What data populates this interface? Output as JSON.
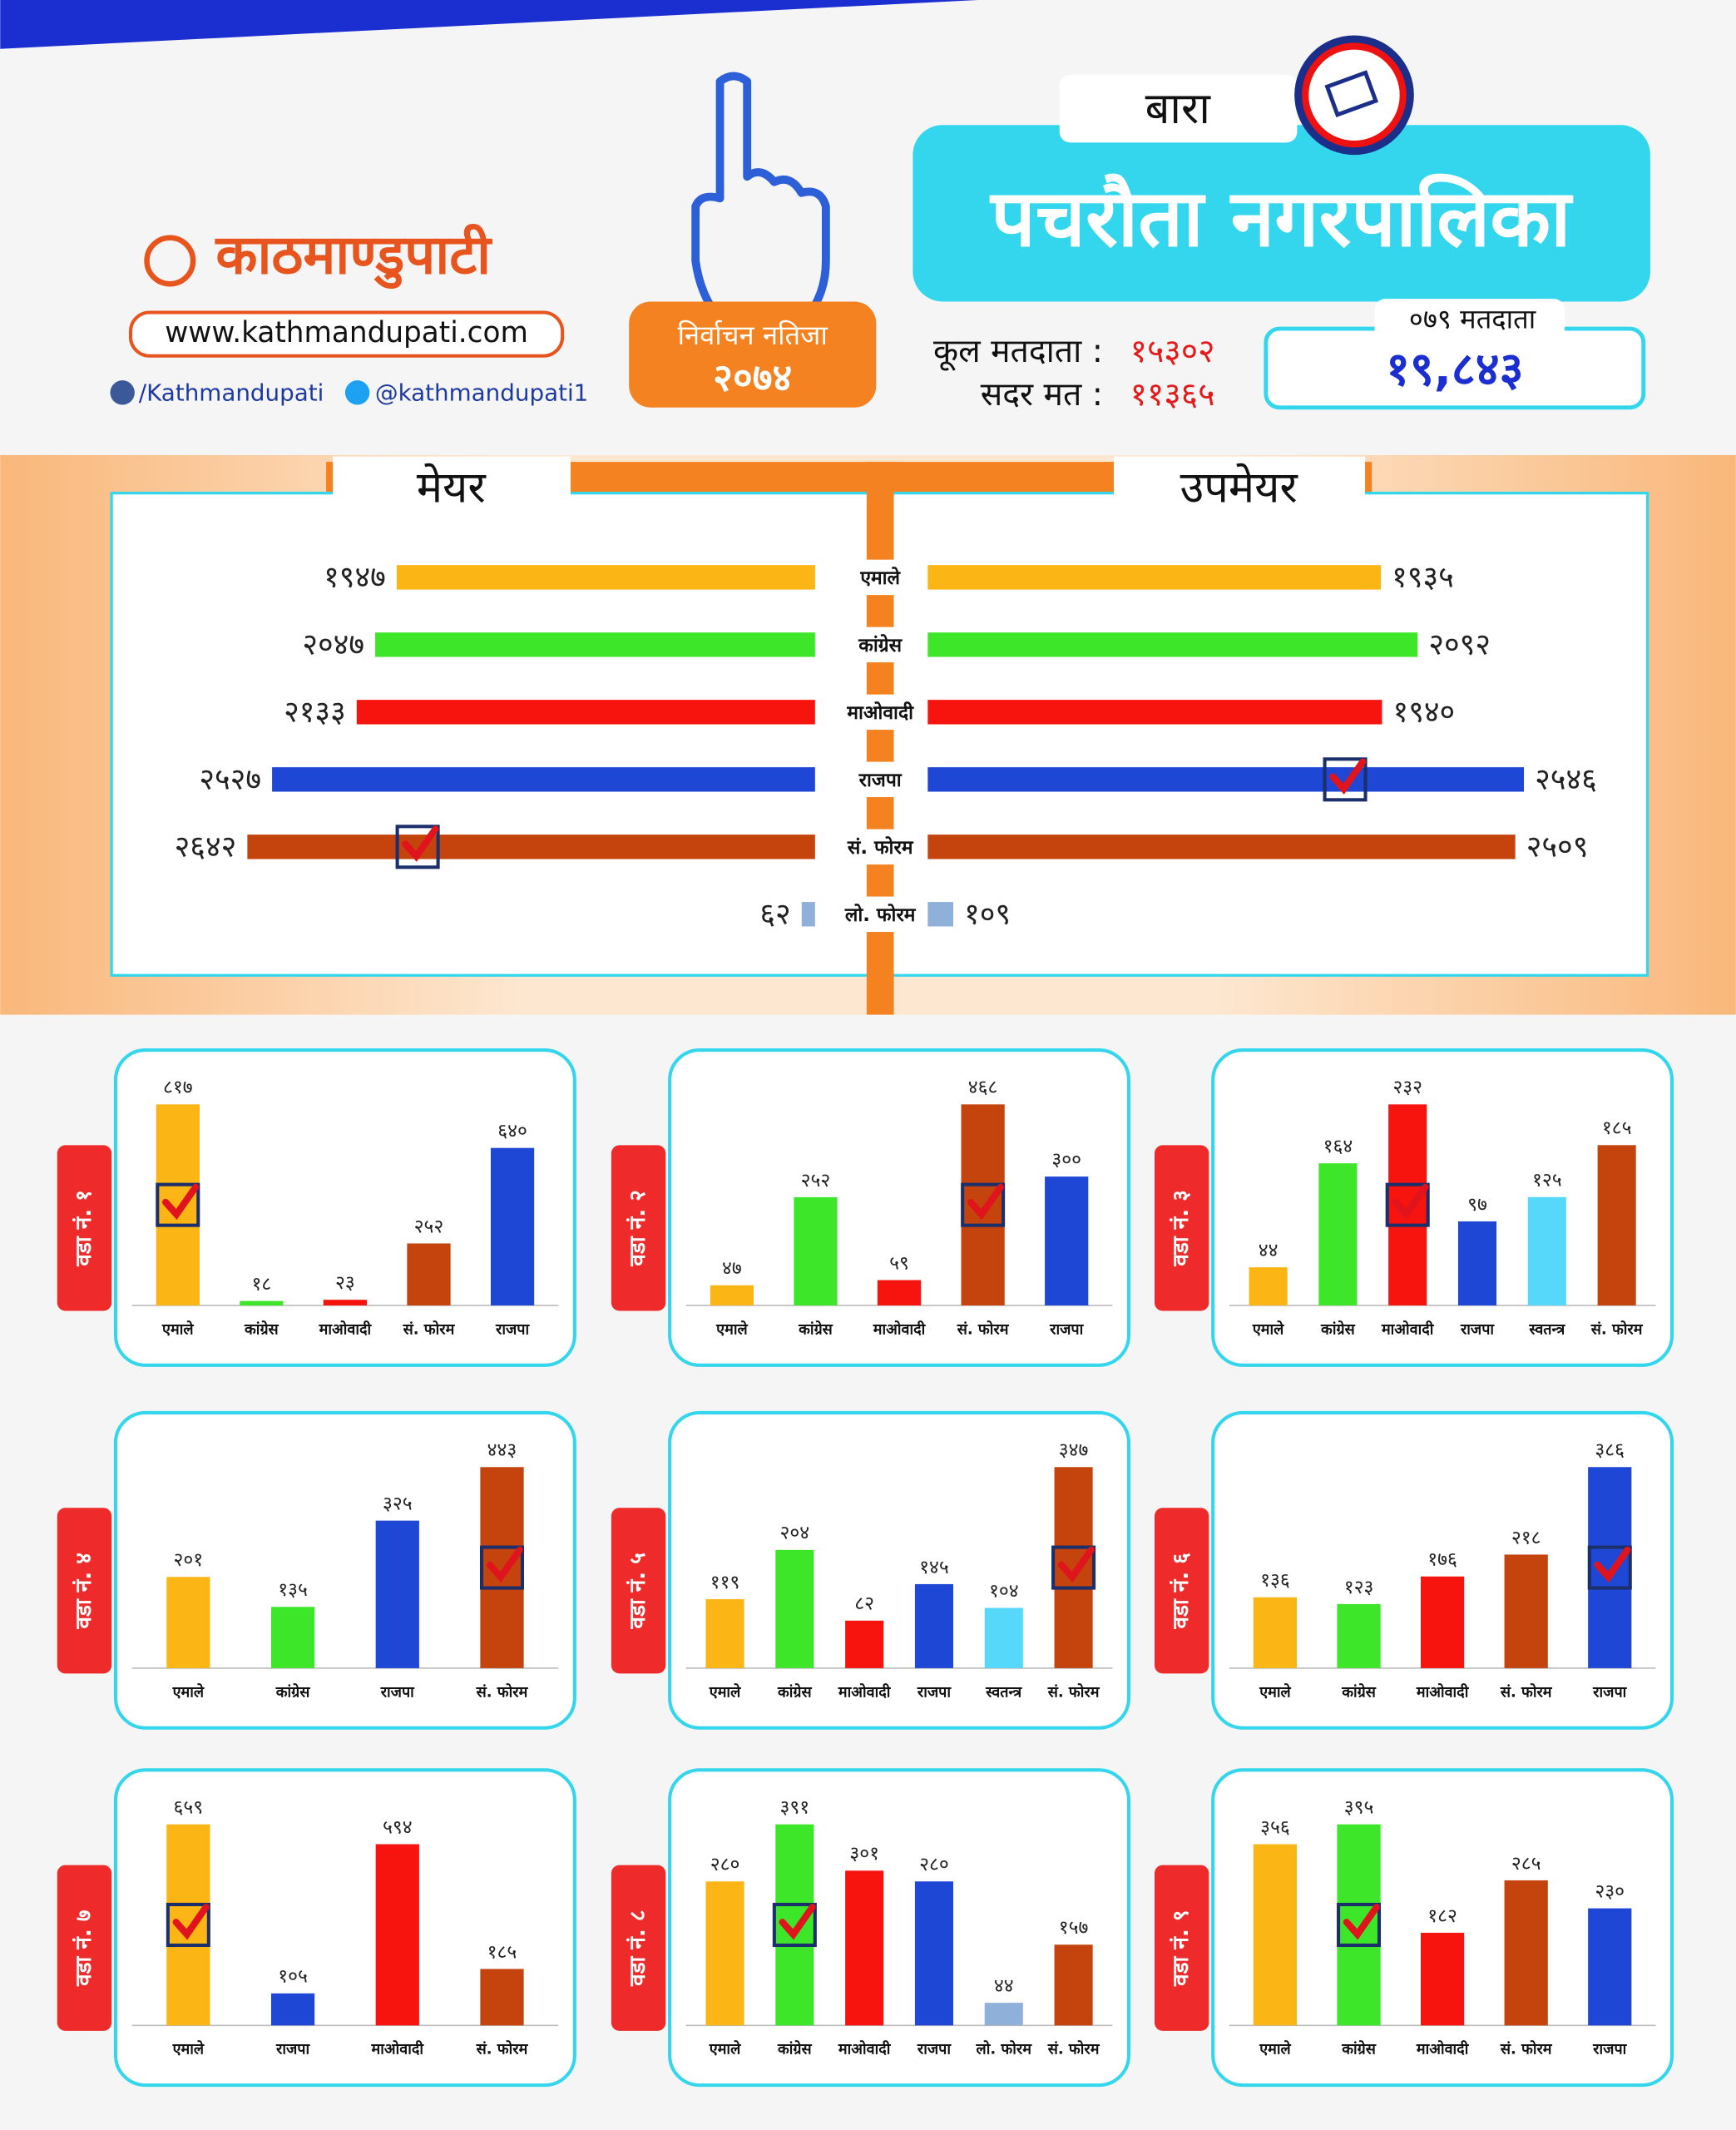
{
  "header": {
    "region": "बारा",
    "title": "पचरौता नगरपालिका",
    "brand": "काठमाण्डुपाटी",
    "website": "www.kathmandupati.com",
    "facebook": "/Kathmandupati",
    "twitter": "@kathmandupati1",
    "result_label": "निर्वाचन नतिजा",
    "result_year": "२०७४",
    "total_voters_label": "कूल मतदाता :",
    "total_voters": "१५३०२",
    "valid_votes_label": "सदर मत :",
    "valid_votes": "११३६५",
    "voters_2079_label": "०७९ मतदाता",
    "voters_2079": "१९,८४३"
  },
  "chart_data": [
    {
      "type": "diverging-bar",
      "categories": [
        "एमाले",
        "कांग्रेस",
        "माओवादी",
        "राजपा",
        "सं. फोरम",
        "लो. फोरम"
      ],
      "colors": [
        "#fbb514",
        "#3ee62a",
        "#f7130e",
        "#1e47d6",
        "#c5440e",
        "#8fb0d8"
      ],
      "series": [
        {
          "name": "मेयर",
          "values": [
            1947,
            2047,
            2133,
            2527,
            2642,
            62
          ],
          "value_labels": [
            "१९४७",
            "२०४७",
            "२१३३",
            "२५२७",
            "२६४२",
            "६२"
          ],
          "winner": 4
        },
        {
          "name": "उपमेयर",
          "values": [
            1935,
            2092,
            1940,
            2546,
            2509,
            109
          ],
          "value_labels": [
            "१९३५",
            "२०९२",
            "१९४०",
            "२५४६",
            "२५०९",
            "१०९"
          ],
          "winner": 3
        }
      ]
    },
    {
      "type": "bar",
      "title": "वडा नं. १",
      "categories": [
        "एमाले",
        "कांग्रेस",
        "माओवादी",
        "सं. फोरम",
        "राजपा"
      ],
      "colors": [
        "#fbb514",
        "#3ee62a",
        "#f7130e",
        "#c5440e",
        "#1e47d6"
      ],
      "values": [
        817,
        18,
        23,
        252,
        640
      ],
      "value_labels": [
        "८१७",
        "१८",
        "२३",
        "२५२",
        "६४०"
      ],
      "winner": 0
    },
    {
      "type": "bar",
      "title": "वडा नं. २",
      "categories": [
        "एमाले",
        "कांग्रेस",
        "माओवादी",
        "सं. फोरम",
        "राजपा"
      ],
      "colors": [
        "#fbb514",
        "#3ee62a",
        "#f7130e",
        "#c5440e",
        "#1e47d6"
      ],
      "values": [
        47,
        252,
        59,
        468,
        300
      ],
      "value_labels": [
        "४७",
        "२५२",
        "५९",
        "४६८",
        "३००"
      ],
      "winner": 3
    },
    {
      "type": "bar",
      "title": "वडा नं. ३",
      "categories": [
        "एमाले",
        "कांग्रेस",
        "माओवादी",
        "राजपा",
        "स्वतन्त्र",
        "सं. फोरम"
      ],
      "colors": [
        "#fbb514",
        "#3ee62a",
        "#f7130e",
        "#1e47d6",
        "#56d8fb",
        "#c5440e"
      ],
      "values": [
        44,
        164,
        232,
        97,
        125,
        185
      ],
      "value_labels": [
        "४४",
        "१६४",
        "२३२",
        "९७",
        "१२५",
        "१८५"
      ],
      "winner": 2
    },
    {
      "type": "bar",
      "title": "वडा नं. ४",
      "categories": [
        "एमाले",
        "कांग्रेस",
        "राजपा",
        "सं. फोरम"
      ],
      "colors": [
        "#fbb514",
        "#3ee62a",
        "#1e47d6",
        "#c5440e"
      ],
      "values": [
        201,
        135,
        325,
        443
      ],
      "value_labels": [
        "२०१",
        "१३५",
        "३२५",
        "४४३"
      ],
      "winner": 3
    },
    {
      "type": "bar",
      "title": "वडा नं. ५",
      "categories": [
        "एमाले",
        "कांग्रेस",
        "माओवादी",
        "राजपा",
        "स्वतन्त्र",
        "सं. फोरम"
      ],
      "colors": [
        "#fbb514",
        "#3ee62a",
        "#f7130e",
        "#1e47d6",
        "#56d8fb",
        "#c5440e"
      ],
      "values": [
        119,
        204,
        82,
        145,
        104,
        347
      ],
      "value_labels": [
        "११९",
        "२०४",
        "८२",
        "१४५",
        "१०४",
        "३४७"
      ],
      "winner": 5
    },
    {
      "type": "bar",
      "title": "वडा नं. ६",
      "categories": [
        "एमाले",
        "कांग्रेस",
        "माओवादी",
        "सं. फोरम",
        "राजपा"
      ],
      "colors": [
        "#fbb514",
        "#3ee62a",
        "#f7130e",
        "#c5440e",
        "#1e47d6"
      ],
      "values": [
        136,
        123,
        176,
        218,
        386
      ],
      "value_labels": [
        "१३६",
        "१२३",
        "१७६",
        "२१८",
        "३८६"
      ],
      "winner": 4
    },
    {
      "type": "bar",
      "title": "वडा नं. ७",
      "categories": [
        "एमाले",
        "राजपा",
        "माओवादी",
        "सं. फोरम"
      ],
      "colors": [
        "#fbb514",
        "#1e47d6",
        "#f7130e",
        "#c5440e"
      ],
      "values": [
        659,
        105,
        594,
        185
      ],
      "value_labels": [
        "६५९",
        "१०५",
        "५९४",
        "१८५"
      ],
      "winner": 0
    },
    {
      "type": "bar",
      "title": "वडा नं. ८",
      "categories": [
        "एमाले",
        "कांग्रेस",
        "माओवादी",
        "राजपा",
        "लो. फोरम",
        "सं. फोरम"
      ],
      "colors": [
        "#fbb514",
        "#3ee62a",
        "#f7130e",
        "#1e47d6",
        "#8fb0d8",
        "#c5440e"
      ],
      "values": [
        280,
        391,
        301,
        280,
        44,
        157
      ],
      "value_labels": [
        "२८०",
        "३९१",
        "३०१",
        "२८०",
        "४४",
        "१५७"
      ],
      "winner": 1
    },
    {
      "type": "bar",
      "title": "वडा नं. ९",
      "categories": [
        "एमाले",
        "कांग्रेस",
        "माओवादी",
        "सं. फोरम",
        "राजपा"
      ],
      "colors": [
        "#fbb514",
        "#3ee62a",
        "#f7130e",
        "#c5440e",
        "#1e47d6"
      ],
      "values": [
        356,
        395,
        182,
        285,
        230
      ],
      "value_labels": [
        "३५६",
        "३९५",
        "१८२",
        "२८५",
        "२३०"
      ],
      "winner": 1
    }
  ]
}
